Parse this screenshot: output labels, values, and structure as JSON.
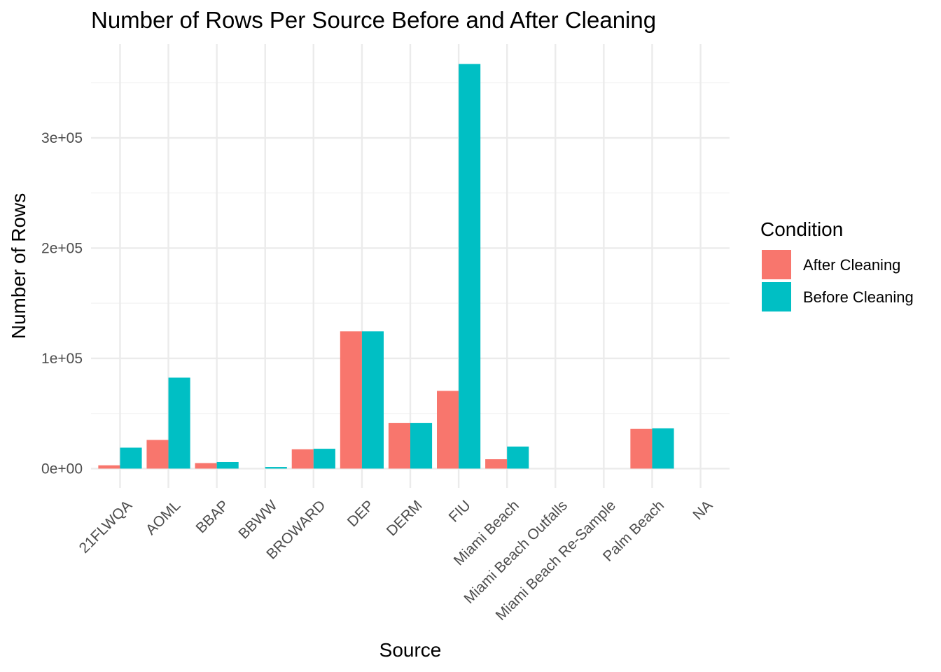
{
  "chart_data": {
    "type": "bar",
    "title": "Number of Rows Per Source Before and After Cleaning",
    "xlabel": "Source",
    "ylabel": "Number of Rows",
    "categories": [
      "21FLWQA",
      "AOML",
      "BBAP",
      "BBWW",
      "BROWARD",
      "DEP",
      "DERM",
      "FIU",
      "Miami Beach",
      "Miami Beach  Outfalls",
      "Miami Beach Re-Sample",
      "Palm Beach",
      "NA"
    ],
    "series": [
      {
        "name": "After Cleaning",
        "color": "#F8766D",
        "values": [
          3000,
          26000,
          5000,
          0,
          17500,
          124500,
          41500,
          70500,
          8500,
          0,
          0,
          36000,
          0
        ]
      },
      {
        "name": "Before Cleaning",
        "color": "#00BFC4",
        "values": [
          19000,
          82500,
          6000,
          1500,
          18000,
          124500,
          41500,
          367000,
          20000,
          0,
          0,
          36500,
          0
        ]
      }
    ],
    "ylim": [
      -17500,
      385000
    ],
    "yticks": [
      0,
      100000,
      200000,
      300000
    ],
    "yticklabels": [
      "0e+00",
      "1e+05",
      "2e+05",
      "3e+05"
    ],
    "grid": true,
    "legend": {
      "title": "Condition",
      "position": "right"
    }
  }
}
